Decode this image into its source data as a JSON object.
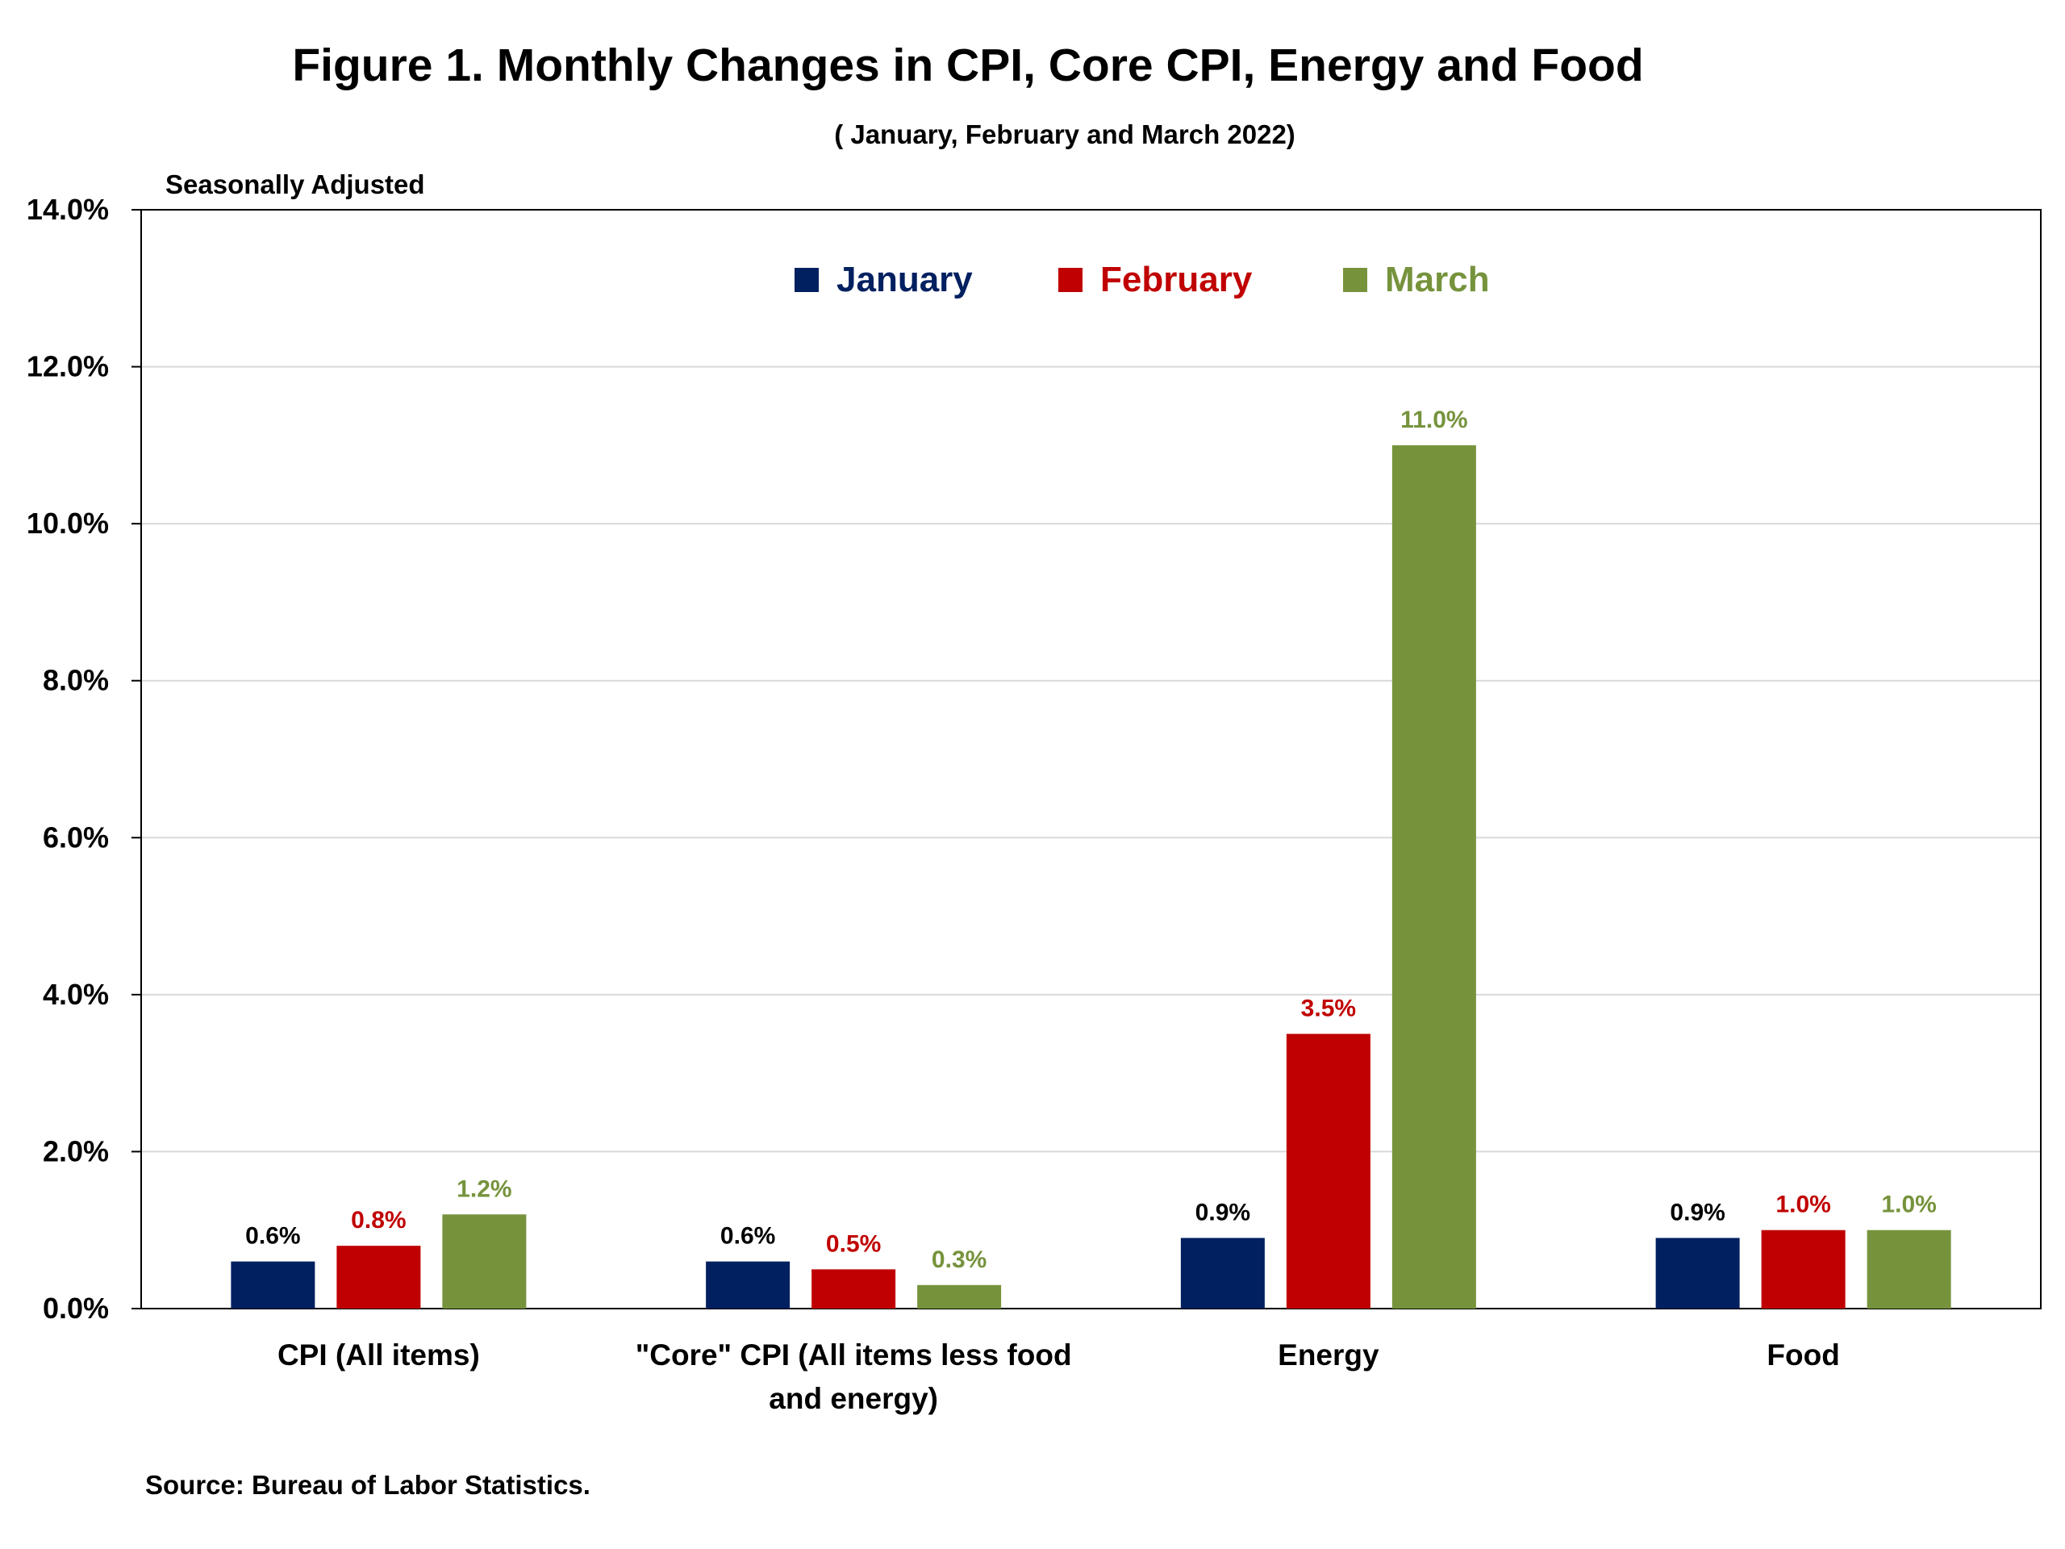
{
  "chart_data": {
    "type": "bar",
    "title": "Figure 1. Monthly Changes in CPI, Core CPI, Energy and Food",
    "subtitle": "( January, February and March 2022)",
    "ylabel": "Seasonally Adjusted",
    "source": "Source: Bureau of Labor Statistics.",
    "ylim": [
      0,
      14
    ],
    "yticks": [
      "0.0%",
      "2.0%",
      "4.0%",
      "6.0%",
      "8.0%",
      "10.0%",
      "12.0%",
      "14.0%"
    ],
    "grid": true,
    "legend_position": "top-center",
    "categories": [
      [
        "CPI (All items)"
      ],
      [
        "\"Core\" CPI (All items less food",
        "and energy)"
      ],
      [
        "Energy"
      ],
      [
        "Food"
      ]
    ],
    "series": [
      {
        "name": "January",
        "color": "#002060",
        "label_color": "#000000",
        "values": [
          0.6,
          0.6,
          0.9,
          0.9
        ],
        "labels": [
          "0.6%",
          "0.6%",
          "0.9%",
          "0.9%"
        ]
      },
      {
        "name": "February",
        "color": "#C00000",
        "label_color": "#C00000",
        "values": [
          0.8,
          0.5,
          3.5,
          1.0
        ],
        "labels": [
          "0.8%",
          "0.5%",
          "3.5%",
          "1.0%"
        ]
      },
      {
        "name": "March",
        "color": "#76933C",
        "label_color": "#76933C",
        "values": [
          1.2,
          0.3,
          11.0,
          1.0
        ],
        "labels": [
          "1.2%",
          "0.3%",
          "11.0%",
          "1.0%"
        ]
      }
    ]
  }
}
